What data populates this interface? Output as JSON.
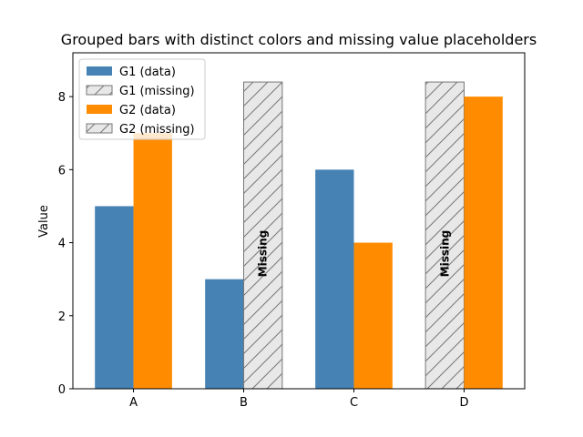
{
  "chart_data": {
    "type": "bar",
    "title": "Grouped bars with distinct colors and missing value placeholders",
    "xlabel": "",
    "ylabel": "Value",
    "categories": [
      "A",
      "B",
      "C",
      "D"
    ],
    "ylim": [
      0,
      9.2
    ],
    "yticks": [
      0,
      2,
      4,
      6,
      8
    ],
    "grid": false,
    "legend_position": "upper-left",
    "series": [
      {
        "name": "G1 (data)",
        "color": "#4682b4",
        "values": [
          5,
          3,
          6,
          null
        ]
      },
      {
        "name": "G2 (data)",
        "color": "#ff8c00",
        "values": [
          7,
          null,
          4,
          8
        ]
      }
    ],
    "missing_placeholder": {
      "value": 8.4,
      "label": "Missing",
      "fill": "#e8e8e8",
      "hatch": "diagonal",
      "legend": [
        "G1 (missing)",
        "G2 (missing)"
      ]
    }
  }
}
